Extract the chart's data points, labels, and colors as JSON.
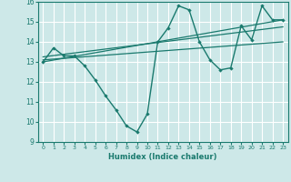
{
  "xlabel": "Humidex (Indice chaleur)",
  "xlim": [
    -0.5,
    23.5
  ],
  "ylim": [
    9,
    16
  ],
  "yticks": [
    9,
    10,
    11,
    12,
    13,
    14,
    15,
    16
  ],
  "xticks": [
    0,
    1,
    2,
    3,
    4,
    5,
    6,
    7,
    8,
    9,
    10,
    11,
    12,
    13,
    14,
    15,
    16,
    17,
    18,
    19,
    20,
    21,
    22,
    23
  ],
  "bg_color": "#cde8e8",
  "grid_color": "#ffffff",
  "line_color": "#1a7a6e",
  "series1_x": [
    0,
    1,
    2,
    3,
    4,
    5,
    6,
    7,
    8,
    9,
    10,
    11,
    12,
    13,
    14,
    15,
    16,
    17,
    18,
    19,
    20,
    21,
    22,
    23
  ],
  "series1_y": [
    13.0,
    13.7,
    13.3,
    13.3,
    12.8,
    12.1,
    11.3,
    10.6,
    9.8,
    9.5,
    10.4,
    14.0,
    14.7,
    15.8,
    15.6,
    14.0,
    13.1,
    12.6,
    12.7,
    14.8,
    14.1,
    15.8,
    15.1,
    15.1
  ],
  "series2_x": [
    0,
    23
  ],
  "series2_y": [
    13.0,
    15.1
  ],
  "series3_x": [
    0,
    23
  ],
  "series3_y": [
    13.25,
    14.75
  ],
  "series4_x": [
    0,
    23
  ],
  "series4_y": [
    13.1,
    14.0
  ]
}
